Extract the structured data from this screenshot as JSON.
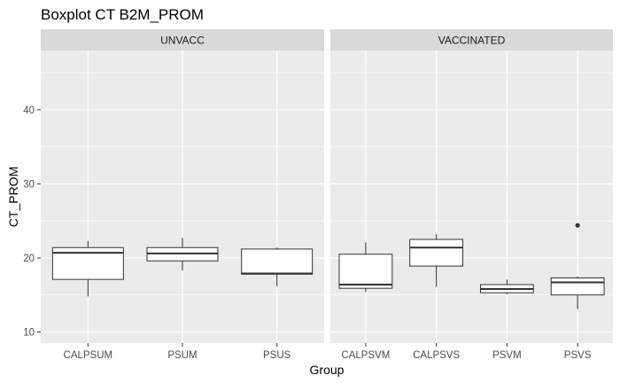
{
  "chart_data": {
    "type": "boxplot",
    "title": "Boxplot CT B2M_PROM",
    "xlabel": "Group",
    "ylabel": "CT_PROM",
    "ylim": [
      8.5,
      48
    ],
    "yticks": [
      10,
      20,
      30,
      40
    ],
    "grid": true,
    "colors": {
      "panel_bg": "#ebebeb",
      "strip_bg": "#d9d9d9",
      "grid": "#ffffff",
      "box_fill": "#ffffff",
      "box_line": "#333333",
      "outlier": "#333333"
    },
    "facets": [
      {
        "label": "UNVACC",
        "groups": [
          {
            "name": "CALPSUM",
            "min": 14.8,
            "q1": 17.1,
            "median": 20.7,
            "q3": 21.4,
            "max": 22.3,
            "outliers": []
          },
          {
            "name": "PSUM",
            "min": 18.3,
            "q1": 19.6,
            "median": 20.6,
            "q3": 21.4,
            "max": 22.7,
            "outliers": []
          },
          {
            "name": "PSUS",
            "min": 16.2,
            "q1": 17.8,
            "median": 17.9,
            "q3": 21.2,
            "max": 21.4,
            "outliers": []
          }
        ]
      },
      {
        "label": "VACCINATED",
        "groups": [
          {
            "name": "CALPSVM",
            "min": 15.4,
            "q1": 15.9,
            "median": 16.4,
            "q3": 20.5,
            "max": 22.1,
            "outliers": []
          },
          {
            "name": "CALPSVS",
            "min": 16.1,
            "q1": 18.9,
            "median": 21.4,
            "q3": 22.5,
            "max": 23.2,
            "outliers": []
          },
          {
            "name": "PSVM",
            "min": 15.1,
            "q1": 15.3,
            "median": 15.8,
            "q3": 16.4,
            "max": 17.1,
            "outliers": []
          },
          {
            "name": "PSVS",
            "min": 13.1,
            "q1": 15.0,
            "median": 16.7,
            "q3": 17.3,
            "max": 17.5,
            "outliers": [
              24.4
            ]
          }
        ]
      }
    ]
  }
}
